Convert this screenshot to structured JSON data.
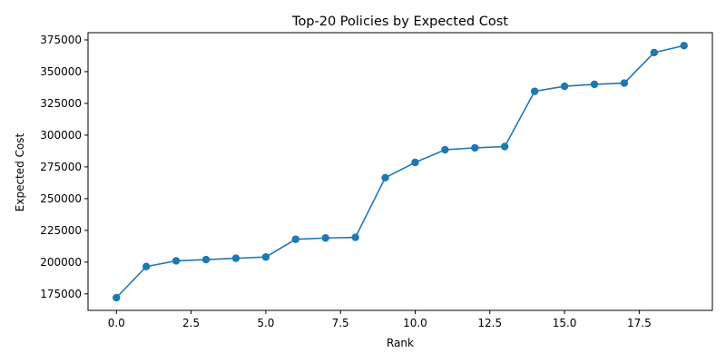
{
  "chart_data": {
    "type": "line",
    "title": "Top-20 Policies by Expected Cost",
    "xlabel": "Rank",
    "ylabel": "Expected Cost",
    "xlim": [
      -0.95,
      19.95
    ],
    "ylim": [
      162000,
      380700
    ],
    "x_ticks": [
      0,
      2.5,
      5,
      7.5,
      10,
      12.5,
      15,
      17.5
    ],
    "x_tick_labels": [
      "0.0",
      "2.5",
      "5.0",
      "7.5",
      "10.0",
      "12.5",
      "15.0",
      "17.5"
    ],
    "y_ticks": [
      175000,
      200000,
      225000,
      250000,
      275000,
      300000,
      325000,
      350000,
      375000
    ],
    "y_tick_labels": [
      "175000",
      "200000",
      "225000",
      "250000",
      "275000",
      "300000",
      "325000",
      "350000",
      "375000"
    ],
    "grid": false,
    "legend": "none",
    "series": [
      {
        "x": [
          0,
          1,
          2,
          3,
          4,
          5,
          6,
          7,
          8,
          9,
          10,
          11,
          12,
          13,
          14,
          15,
          16,
          17,
          18,
          19
        ],
        "y": [
          172000,
          196500,
          201000,
          202000,
          203000,
          204000,
          218000,
          219000,
          219500,
          266500,
          278500,
          288500,
          290000,
          291000,
          334500,
          338500,
          340000,
          341000,
          365000,
          370500
        ],
        "color": "#1f77b4",
        "marker": "circle"
      }
    ]
  }
}
